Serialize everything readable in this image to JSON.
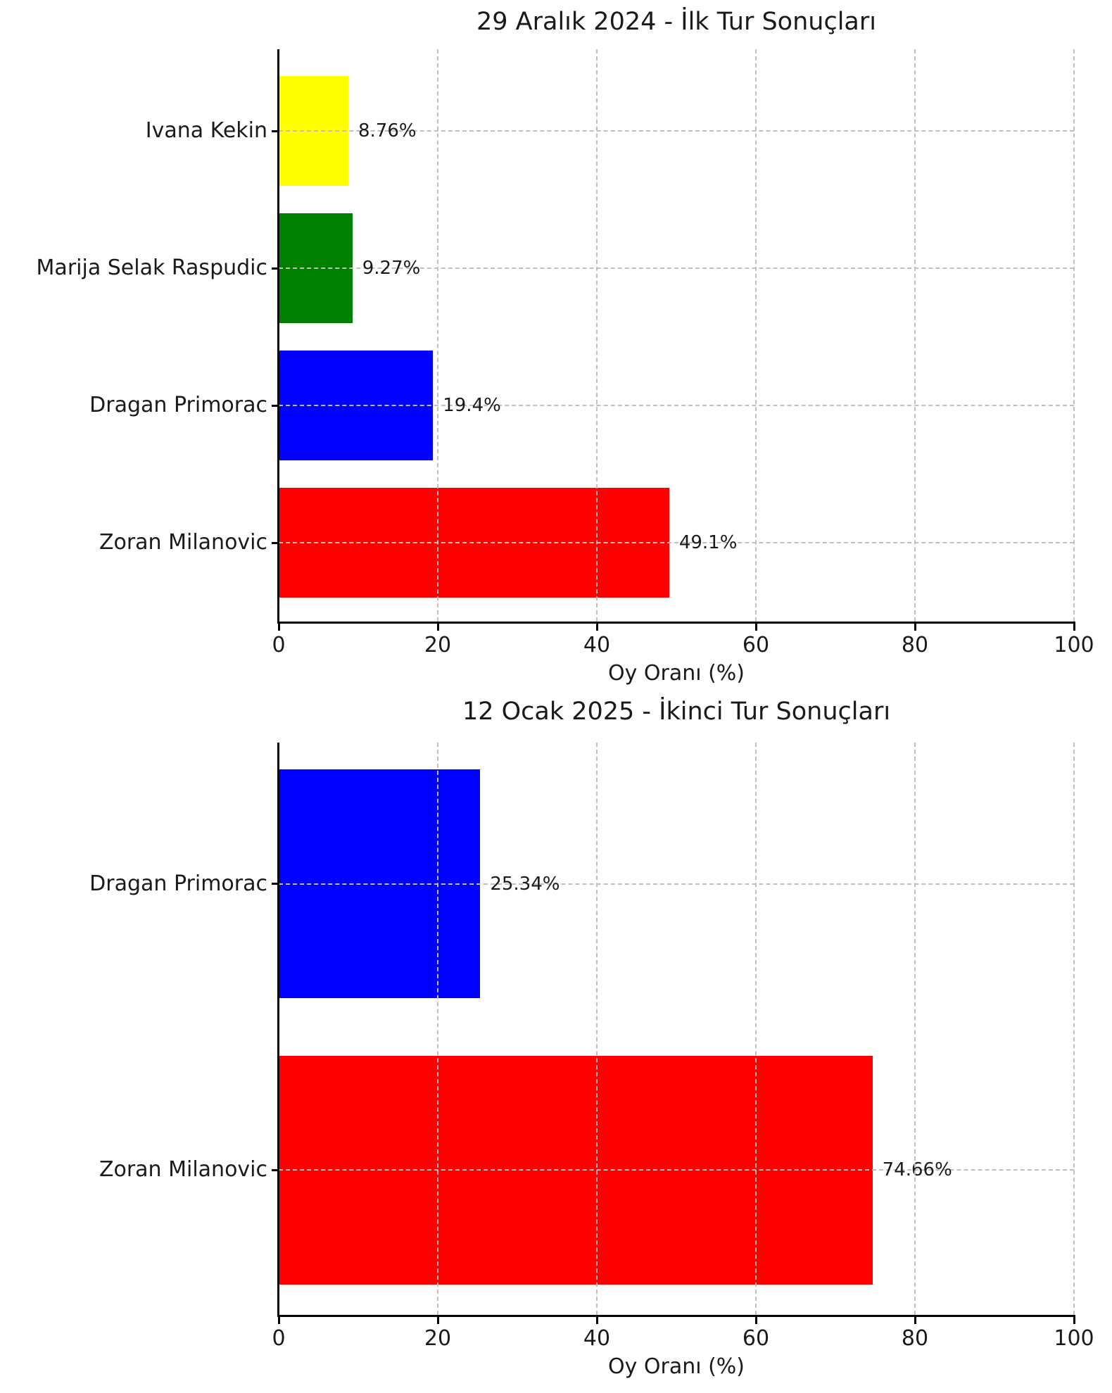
{
  "figure": {
    "background": "#ffffff",
    "text_color": "#1a1a1a",
    "axis_color": "#000000",
    "grid_color": "#c0c0c0"
  },
  "chart_data": [
    {
      "type": "bar",
      "orientation": "horizontal",
      "title": "29 Aralık 2024 - İlk Tur Sonuçları",
      "xlabel": "Oy Oranı (%)",
      "xlim": [
        0,
        100
      ],
      "xticks": [
        0,
        20,
        40,
        60,
        80,
        100
      ],
      "grid": true,
      "legend": false,
      "categories": [
        "Ivana Kekin",
        "Marija Selak Raspudic",
        "Dragan Primorac",
        "Zoran Milanovic"
      ],
      "values": [
        8.76,
        9.27,
        19.4,
        49.1
      ],
      "value_labels": [
        "8.76%",
        "9.27%",
        "19.4%",
        "49.1%"
      ],
      "colors": [
        "#ffff00",
        "#008000",
        "#0000ff",
        "#ff0000"
      ]
    },
    {
      "type": "bar",
      "orientation": "horizontal",
      "title": "12 Ocak 2025 - İkinci Tur Sonuçları",
      "xlabel": "Oy Oranı (%)",
      "xlim": [
        0,
        100
      ],
      "xticks": [
        0,
        20,
        40,
        60,
        80,
        100
      ],
      "grid": true,
      "legend": false,
      "categories": [
        "Dragan Primorac",
        "Zoran Milanovic"
      ],
      "values": [
        25.34,
        74.66
      ],
      "value_labels": [
        "25.34%",
        "74.66%"
      ],
      "colors": [
        "#0000ff",
        "#ff0000"
      ]
    }
  ]
}
